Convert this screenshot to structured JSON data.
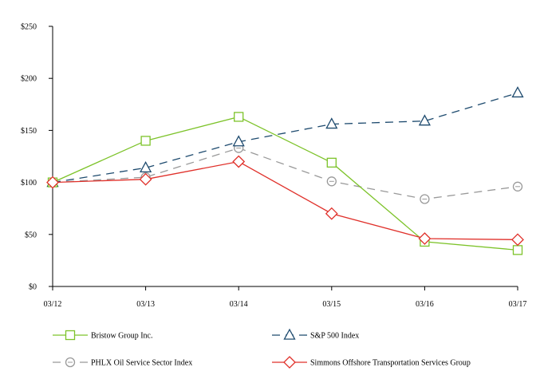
{
  "chart_data": {
    "type": "line",
    "title": "",
    "xlabel": "",
    "ylabel": "",
    "categories": [
      "03/12",
      "03/13",
      "03/14",
      "03/15",
      "03/16",
      "03/17"
    ],
    "ylim": [
      0,
      250
    ],
    "yticks": [
      0,
      50,
      100,
      150,
      200,
      250
    ],
    "ytick_labels": [
      "$0",
      "$50",
      "$100",
      "$150",
      "$200",
      "$250"
    ],
    "grid": false,
    "legend_position": "bottom",
    "series": [
      {
        "name": "Bristow Group Inc.",
        "values": [
          100,
          140,
          163,
          119,
          43,
          35
        ],
        "color": "#7dc32a",
        "marker": "square",
        "line_style": "solid"
      },
      {
        "name": "S&P 500 Index",
        "values": [
          100,
          114,
          139,
          156,
          159,
          186
        ],
        "color": "#1d4a6e",
        "marker": "triangle",
        "line_style": "dashed"
      },
      {
        "name": "PHLX Oil Service Sector Index",
        "values": [
          100,
          105,
          133,
          101,
          84,
          96
        ],
        "color": "#999999",
        "marker": "circle",
        "line_style": "dashed"
      },
      {
        "name": "Simmons Offshore Transportation Services Group",
        "values": [
          100,
          103,
          120,
          70,
          46,
          45
        ],
        "color": "#e0302a",
        "marker": "diamond",
        "line_style": "solid"
      }
    ]
  }
}
